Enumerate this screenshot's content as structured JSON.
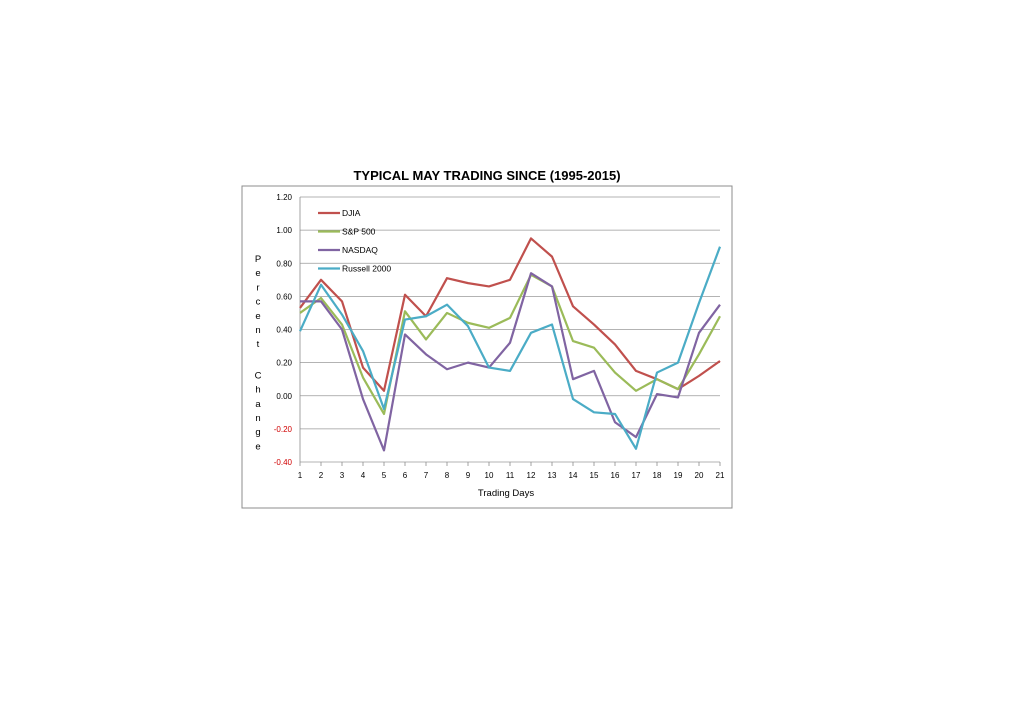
{
  "chart_data": {
    "type": "line",
    "title": "TYPICAL MAY TRADING SINCE (1995-2015)",
    "xlabel": "Trading  Days",
    "ylabel": "Percent Change",
    "x": [
      1,
      2,
      3,
      4,
      5,
      6,
      7,
      8,
      9,
      10,
      11,
      12,
      13,
      14,
      15,
      16,
      17,
      18,
      19,
      20,
      21
    ],
    "ylim": [
      -0.4,
      1.2
    ],
    "yticks": [
      "-0.40",
      "-0.20",
      "0.00",
      "0.20",
      "0.40",
      "0.60",
      "0.80",
      "1.00",
      "1.20"
    ],
    "grid": true,
    "legend_position": "top-left",
    "series": [
      {
        "name": "DJIA",
        "color": "#c0504d",
        "values": [
          0.53,
          0.7,
          0.57,
          0.17,
          0.03,
          0.61,
          0.48,
          0.71,
          0.68,
          0.66,
          0.7,
          0.95,
          0.84,
          0.54,
          0.43,
          0.31,
          0.15,
          0.1,
          0.04,
          0.12,
          0.21
        ]
      },
      {
        "name": "S&P 500",
        "color": "#9bbb59",
        "values": [
          0.5,
          0.59,
          0.43,
          0.11,
          -0.11,
          0.51,
          0.34,
          0.5,
          0.44,
          0.41,
          0.47,
          0.73,
          0.66,
          0.33,
          0.29,
          0.14,
          0.03,
          0.1,
          0.04,
          0.25,
          0.48
        ]
      },
      {
        "name": "NASDAQ",
        "color": "#8064a2",
        "values": [
          0.57,
          0.57,
          0.4,
          -0.02,
          -0.33,
          0.37,
          0.25,
          0.16,
          0.2,
          0.17,
          0.32,
          0.74,
          0.66,
          0.1,
          0.15,
          -0.16,
          -0.25,
          0.01,
          -0.01,
          0.38,
          0.55
        ]
      },
      {
        "name": "Russell 2000",
        "color": "#4bacc6",
        "values": [
          0.39,
          0.67,
          0.49,
          0.27,
          -0.08,
          0.46,
          0.48,
          0.55,
          0.42,
          0.17,
          0.15,
          0.38,
          0.43,
          -0.02,
          -0.1,
          -0.11,
          -0.32,
          0.14,
          0.2,
          0.56,
          0.9
        ]
      }
    ]
  }
}
